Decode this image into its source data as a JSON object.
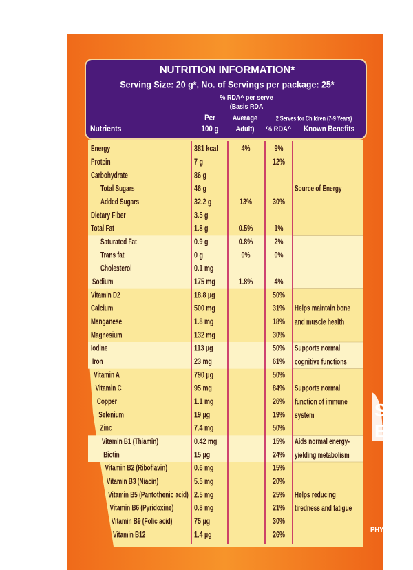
{
  "header": {
    "title": "NUTRITION INFORMATION*",
    "serving": "Serving Size: 20 g*, No. of Servings per package: 25*"
  },
  "columns": {
    "nutrients": "Nutrients",
    "per_100g": [
      "Per",
      "100 g"
    ],
    "rda_adult": [
      "% RDA^ per serve",
      "(Basis RDA",
      "Average",
      "Adult)"
    ],
    "rda_child": [
      "2 Serves for Children (7-9 Years)",
      "% RDA^"
    ],
    "benefits": "Known Benefits"
  },
  "rows": [
    {
      "name": "Energy",
      "per_100g": "381 kcal",
      "rda_adult": "4%",
      "rda_child": "9%"
    },
    {
      "name": "Protein",
      "per_100g": "7 g",
      "rda_child": "12%"
    },
    {
      "name": "Carbohydrate",
      "per_100g": "86 g"
    },
    {
      "name": "Total Sugars",
      "per_100g": "46 g",
      "benefit": [
        "Source of Energy"
      ]
    },
    {
      "name": "Added Sugars",
      "per_100g": "32.2 g",
      "rda_adult": "13%",
      "rda_child": "30%"
    },
    {
      "name": "Dietary Fiber",
      "per_100g": "3.5 g"
    },
    {
      "name": "Total Fat",
      "per_100g": "1.8 g",
      "rda_adult": "0.5%",
      "rda_child": "1%"
    },
    {
      "name": "Saturated Fat",
      "per_100g": "0.9 g",
      "rda_adult": "0.8%",
      "rda_child": "2%"
    },
    {
      "name": "Trans fat",
      "per_100g": "0 g",
      "rda_adult": "0%",
      "rda_child": "0%"
    },
    {
      "name": "Cholesterol",
      "per_100g": "0.1 mg"
    },
    {
      "name": "Sodium",
      "per_100g": "175 mg",
      "rda_adult": "1.8%",
      "rda_child": "4%"
    },
    {
      "name": "Vitamin D2",
      "per_100g": "18.8 µg",
      "rda_child": "50%"
    },
    {
      "name": "Calcium",
      "per_100g": "500 mg",
      "rda_child": "31%",
      "benefit": [
        "Helps maintain bone",
        "and muscle health"
      ]
    },
    {
      "name": "Manganese",
      "per_100g": "1.8 mg",
      "rda_child": "18%"
    },
    {
      "name": "Magnesium",
      "per_100g": "132 mg",
      "rda_child": "30%"
    },
    {
      "name": "Iodine",
      "per_100g": "113 µg",
      "rda_child": "50%",
      "benefit": [
        "Supports normal",
        "cognitive functions"
      ]
    },
    {
      "name": "Iron",
      "per_100g": "23 mg",
      "rda_child": "61%"
    },
    {
      "name": "Vitamin A",
      "per_100g": "790 µg",
      "rda_child": "50%"
    },
    {
      "name": "Vitamin C",
      "per_100g": "95 mg",
      "rda_child": "84%",
      "benefit": [
        "Supports normal",
        "function of immune",
        "system"
      ]
    },
    {
      "name": "Copper",
      "per_100g": "1.1 mg",
      "rda_child": "26%"
    },
    {
      "name": "Selenium",
      "per_100g": "19 µg",
      "rda_child": "19%"
    },
    {
      "name": "Zinc",
      "per_100g": "7.4 mg",
      "rda_child": "50%"
    },
    {
      "name": "Vitamin B1 (Thiamin)",
      "per_100g": "0.42 mg",
      "rda_child": "15%",
      "benefit": [
        "Aids normal energy-",
        "yielding metabolism"
      ]
    },
    {
      "name": "Biotin",
      "per_100g": "15 µg",
      "rda_child": "24%"
    },
    {
      "name": "Vitamin B2 (Riboflavin)",
      "per_100g": "0.6 mg",
      "rda_child": "15%"
    },
    {
      "name": "Vitamin B3 (Niacin)",
      "per_100g": "5.5 mg",
      "rda_child": "20%"
    },
    {
      "name": "Vitamin B5 (Pantothenic acid)",
      "per_100g": "2.5 mg",
      "rda_child": "25%",
      "benefit": [
        "Helps reducing",
        "tiredness and fatigue"
      ]
    },
    {
      "name": "Vitamin B6 (Pyridoxine)",
      "per_100g": "0.8 mg",
      "rda_child": "21%"
    },
    {
      "name": "Vitamin B9 (Folic acid)",
      "per_100g": "75 µg",
      "rda_child": "30%"
    },
    {
      "name": "Vitamin B12",
      "per_100g": "1.4 µg",
      "rda_child": "26%"
    }
  ],
  "side_text": [
    "S",
    "E",
    "PHYS"
  ]
}
